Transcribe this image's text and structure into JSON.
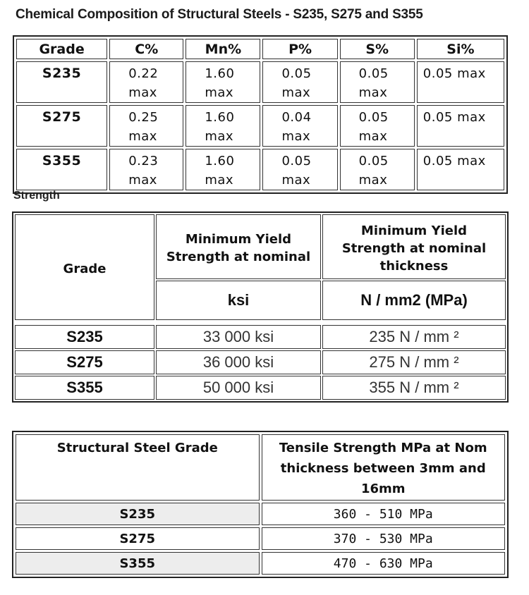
{
  "title": "Chemical Composition of Structural Steels - S235, S275 and S355",
  "composition": {
    "headers": [
      "Grade",
      "C%",
      "Mn%",
      "P%",
      "S%",
      "Si%"
    ],
    "rows": [
      {
        "grade": "S235",
        "c": "0.22 max",
        "mn": "1.60 max",
        "p": "0.05 max",
        "s": "0.05 max",
        "si": "0.05 max"
      },
      {
        "grade": "S275",
        "c": "0.25 max",
        "mn": "1.60 max",
        "p": "0.04 max",
        "s": "0.05 max",
        "si": "0.05 max"
      },
      {
        "grade": "S355",
        "c": "0.23 max",
        "mn": "1.60 max",
        "p": "0.05 max",
        "s": "0.05 max",
        "si": "0.05 max"
      }
    ]
  },
  "strength": {
    "section_title": "Strength",
    "header_grade": "Grade",
    "header_col1": "Minimum Yield Strength at nominal",
    "header_col2": "Minimum Yield Strength at nominal thickness",
    "unit_col1": "ksi",
    "unit_col2": "N / mm2 (MPa)",
    "rows": [
      {
        "grade": "S235",
        "ksi": "33 000 ksi",
        "mpa": "235 N / mm ²"
      },
      {
        "grade": "S275",
        "ksi": "36 000 ksi",
        "mpa": "275 N / mm ²"
      },
      {
        "grade": "S355",
        "ksi": "50 000 ksi",
        "mpa": "355 N / mm ²"
      }
    ]
  },
  "tensile": {
    "header_grade": "Structural Steel Grade",
    "header_value": "Tensile Strength MPa at Nom thickness between 3mm and 16mm",
    "rows": [
      {
        "grade": "S235",
        "value": "360 - 510 MPa"
      },
      {
        "grade": "S275",
        "value": "370 - 530 MPa"
      },
      {
        "grade": "S355",
        "value": "470 - 630 MPa"
      }
    ]
  }
}
